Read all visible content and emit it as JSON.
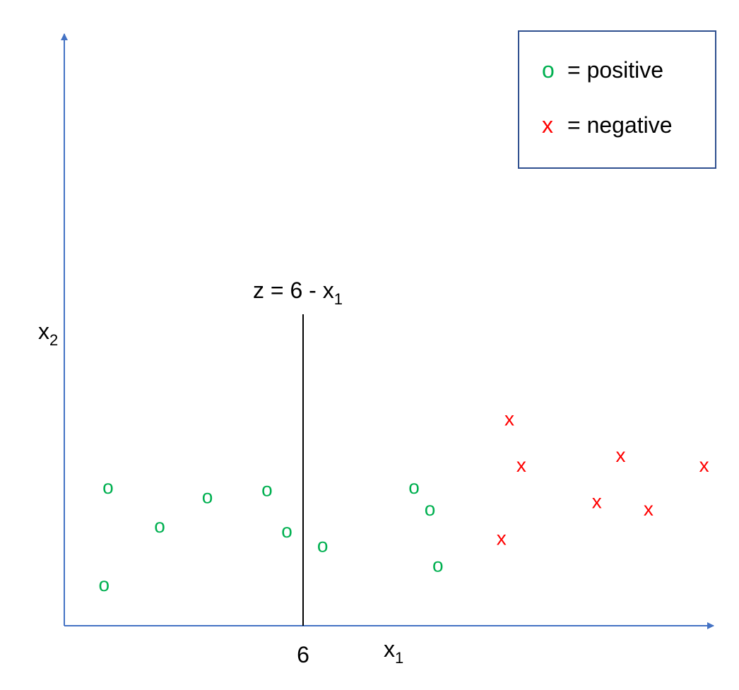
{
  "colors": {
    "axis": "#4472c4",
    "positive": "#00b050",
    "negative": "#ff0000",
    "boundary": "#000000",
    "legend_border": "#2f4f8f"
  },
  "axes": {
    "x_label": "x",
    "x_label_sub": "1",
    "y_label": "x",
    "y_label_sub": "2",
    "x_tick": "6"
  },
  "boundary": {
    "label_prefix": "z = 6 - x",
    "label_sub": "1"
  },
  "legend": {
    "positive_symbol": "o",
    "positive_text": "= positive",
    "negative_symbol": "x",
    "negative_text": "= negative"
  },
  "chart_data": {
    "type": "scatter",
    "x_tick_labels": [
      "6"
    ],
    "series": [
      {
        "name": "positive",
        "marker": "o",
        "points": [
          [
            1.1,
            5.7
          ],
          [
            5.1,
            5.6
          ],
          [
            2.4,
            4.1
          ],
          [
            5.6,
            3.9
          ],
          [
            9.2,
            4.8
          ],
          [
            8.8,
            5.7
          ],
          [
            3.6,
            5.3
          ],
          [
            1.0,
            1.7
          ],
          [
            6.5,
            3.3
          ],
          [
            9.4,
            2.5
          ]
        ]
      },
      {
        "name": "negative",
        "marker": "x",
        "points": [
          [
            11.2,
            8.5
          ],
          [
            11.5,
            6.6
          ],
          [
            14.0,
            7.0
          ],
          [
            16.1,
            6.6
          ],
          [
            13.4,
            5.1
          ],
          [
            14.7,
            4.8
          ],
          [
            11.0,
            3.6
          ]
        ]
      }
    ],
    "boundary": {
      "x": 6
    },
    "xlim": [
      0,
      16.9
    ],
    "ylim": [
      0,
      15
    ]
  }
}
